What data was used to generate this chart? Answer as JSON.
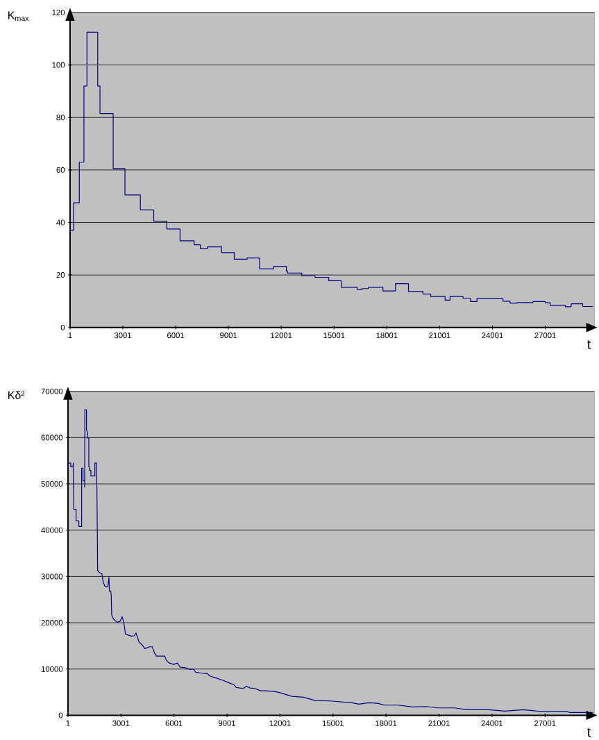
{
  "chart_data": [
    {
      "type": "step",
      "ylabel": "K$_{max}$",
      "xlabel": "t",
      "color": "#000080",
      "grid": "y",
      "xlim": [
        1,
        29800
      ],
      "ylim": [
        0,
        120
      ],
      "xticks": [
        1,
        3001,
        6001,
        9001,
        12001,
        15001,
        18001,
        21001,
        24001,
        27001
      ],
      "yticks": [
        0,
        20,
        40,
        60,
        80,
        100,
        120
      ],
      "x": [
        1,
        200,
        525,
        790,
        960,
        1570,
        1700,
        2450,
        3120,
        3995,
        4755,
        5500,
        6250,
        7050,
        7400,
        7800,
        8610,
        9330,
        10050,
        10770,
        11570,
        12290,
        12350,
        13170,
        13920,
        14700,
        15410,
        16320,
        16600,
        16950,
        17780,
        18490,
        19230,
        20050,
        20490,
        21310,
        21590,
        22330,
        22760,
        23120,
        24600,
        25000,
        25400,
        26300,
        27010,
        27280,
        28150,
        28470,
        29130,
        29720
      ],
      "values": [
        37,
        47.5,
        63,
        92,
        112.5,
        92,
        81.5,
        60.5,
        50.5,
        44.8,
        40.5,
        37.5,
        33,
        31.5,
        30,
        30.7,
        28.5,
        26,
        26.5,
        22.3,
        23.3,
        21.5,
        20.7,
        19.7,
        19.1,
        17.8,
        15.3,
        14.5,
        14.8,
        15.3,
        13.9,
        16.7,
        13.7,
        12.7,
        11.8,
        10.4,
        11.8,
        11.1,
        9.9,
        11,
        10,
        9.3,
        9.5,
        9.9,
        9.4,
        8.4,
        7.9,
        9,
        8,
        8
      ]
    },
    {
      "type": "line",
      "ylabel": "Kδ²",
      "xlabel": "t",
      "color": "#000080",
      "grid": "y",
      "xlim": [
        1,
        29800
      ],
      "ylim": [
        0,
        70000
      ],
      "xticks": [
        1,
        3001,
        6001,
        9001,
        12001,
        15001,
        18001,
        21001,
        24001,
        27001
      ],
      "yticks": [
        0,
        10000,
        20000,
        30000,
        40000,
        50000,
        60000,
        70000
      ],
      "x": [
        1,
        158,
        158,
        289,
        300,
        318,
        328,
        328,
        460,
        460,
        617,
        617,
        774,
        774,
        852,
        852,
        944,
        944,
        957,
        1049,
        1049,
        1114,
        1114,
        1180,
        1180,
        1219,
        1219,
        1298,
        1298,
        1403,
        1521,
        1521,
        1613,
        1638,
        1664,
        1678,
        1796,
        1927,
        1992,
        2097,
        2254,
        2320,
        2346,
        2424,
        2450,
        2477,
        2581,
        2778,
        2948,
        3066,
        3145,
        3197,
        3250,
        3433,
        3603,
        3760,
        3852,
        3957,
        4022,
        4180,
        4350,
        4612,
        4769,
        4874,
        5005,
        5333,
        5464,
        5569,
        5726,
        5988,
        6185,
        6355,
        6643,
        6905,
        7102,
        7233,
        7560,
        7888,
        8019,
        8347,
        8740,
        9067,
        9395,
        9526,
        9919,
        10115,
        10312,
        10574,
        10901,
        11229,
        11753,
        12080,
        12408,
        12674,
        13325,
        13983,
        14848,
        16083,
        16475,
        17000,
        17523,
        17917,
        18703,
        19490,
        20275,
        20930,
        21848,
        22634,
        23814,
        24731,
        25779,
        26565,
        27089,
        28270,
        28401,
        29712
      ],
      "values": [
        54500,
        54500,
        53700,
        53700,
        54500,
        48700,
        45900,
        44500,
        44500,
        42000,
        42000,
        40800,
        40800,
        53400,
        53400,
        50700,
        50700,
        49300,
        66000,
        66000,
        61700,
        60900,
        59900,
        59900,
        53700,
        53700,
        52900,
        52900,
        51700,
        51700,
        51700,
        54500,
        54500,
        48700,
        38700,
        31300,
        30800,
        30500,
        28800,
        27800,
        27800,
        29800,
        26800,
        26800,
        25800,
        21600,
        20800,
        20100,
        20300,
        21300,
        20300,
        19100,
        17600,
        17300,
        17100,
        17200,
        17800,
        16600,
        15800,
        15300,
        14400,
        14800,
        14800,
        13700,
        12800,
        12800,
        12800,
        11900,
        11300,
        11000,
        11300,
        10400,
        10300,
        9900,
        10000,
        9300,
        9100,
        9000,
        8500,
        8100,
        7600,
        7100,
        6600,
        6000,
        5800,
        6300,
        5900,
        5800,
        5300,
        5300,
        5100,
        4800,
        4400,
        4100,
        3900,
        3200,
        3100,
        2700,
        2400,
        2700,
        2600,
        2200,
        2200,
        1800,
        1900,
        1600,
        1600,
        1200,
        1200,
        900,
        1200,
        900,
        800,
        800,
        600,
        600
      ]
    }
  ]
}
